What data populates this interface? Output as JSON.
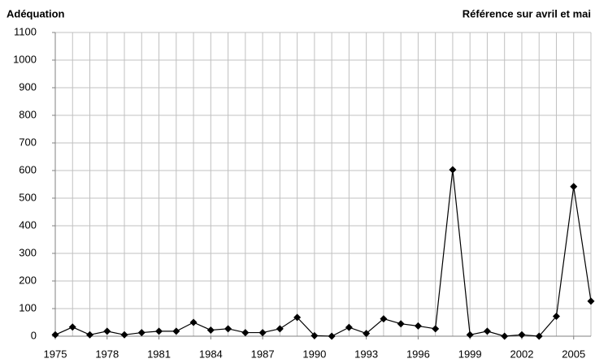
{
  "chart_data": {
    "type": "line",
    "title": "Adéquation",
    "subtitle": "Référence sur avril et mai",
    "x": [
      1975,
      1976,
      1977,
      1978,
      1979,
      1980,
      1981,
      1982,
      1983,
      1984,
      1985,
      1986,
      1987,
      1988,
      1989,
      1990,
      1991,
      1992,
      1993,
      1994,
      1995,
      1996,
      1997,
      1998,
      1999,
      2000,
      2001,
      2002,
      2003,
      2004,
      2005,
      2006
    ],
    "series": [
      {
        "name": "Adéquation",
        "color": "#000000",
        "values": [
          5,
          33,
          5,
          18,
          5,
          13,
          18,
          18,
          50,
          22,
          27,
          13,
          13,
          27,
          68,
          2,
          0,
          32,
          10,
          63,
          45,
          37,
          27,
          603,
          5,
          18,
          0,
          5,
          0,
          72,
          542,
          127
        ]
      }
    ],
    "xlim": [
      1975,
      2006
    ],
    "xticks": [
      1975,
      1978,
      1981,
      1984,
      1987,
      1990,
      1993,
      1996,
      1999,
      2002,
      2005
    ],
    "ylim": [
      0,
      1100
    ],
    "yticks": [
      0,
      100,
      200,
      300,
      400,
      500,
      600,
      700,
      800,
      900,
      1000,
      1100
    ],
    "grid": true
  }
}
